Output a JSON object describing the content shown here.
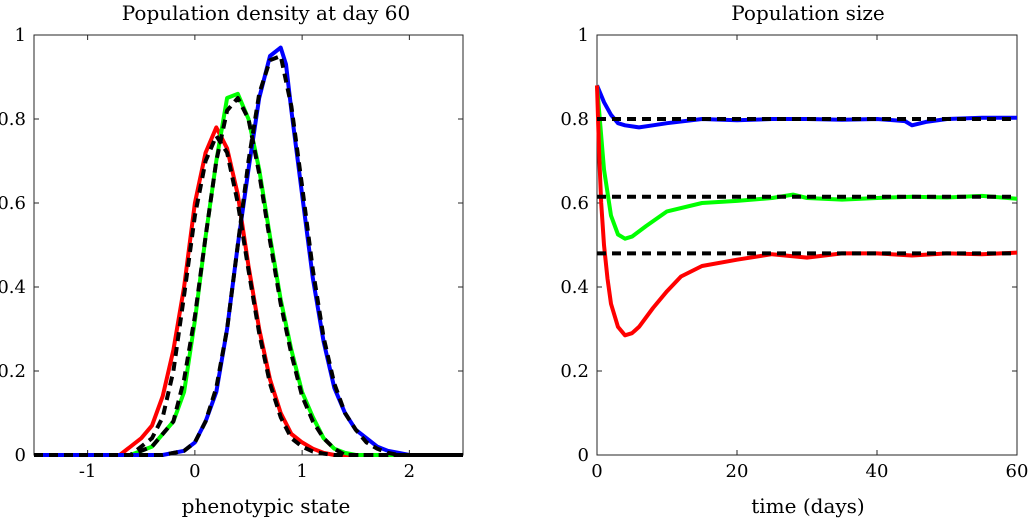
{
  "chart_data": [
    {
      "type": "line",
      "title": "Population density at day 60",
      "xlabel": "phenotypic state",
      "ylabel": "",
      "xlim": [
        -1.5,
        2.5
      ],
      "ylim": [
        0,
        1
      ],
      "xticks": [
        -1,
        0,
        1,
        2
      ],
      "yticks": [
        0,
        0.2,
        0.4,
        0.6,
        0.8,
        1
      ],
      "xtick_labels": [
        "-1",
        "0",
        "1",
        "2"
      ],
      "ytick_labels": [
        "0",
        "0.2",
        "0.4",
        "0.6",
        "0.8",
        "1"
      ],
      "grid": false,
      "series": [
        {
          "color": "#ff0000",
          "style": "solid",
          "x": [
            -1.5,
            -0.7,
            -0.5,
            -0.4,
            -0.3,
            -0.2,
            -0.1,
            0.0,
            0.1,
            0.2,
            0.3,
            0.4,
            0.5,
            0.6,
            0.7,
            0.8,
            0.9,
            1.0,
            1.1,
            1.2,
            1.3,
            1.4,
            2.5
          ],
          "y": [
            0,
            0,
            0.04,
            0.07,
            0.14,
            0.25,
            0.4,
            0.6,
            0.72,
            0.78,
            0.73,
            0.62,
            0.45,
            0.3,
            0.18,
            0.1,
            0.05,
            0.03,
            0.015,
            0.005,
            0,
            0,
            0
          ]
        },
        {
          "color": "#00ff00",
          "style": "solid",
          "x": [
            -1.5,
            -0.6,
            -0.4,
            -0.2,
            -0.1,
            0.0,
            0.1,
            0.2,
            0.3,
            0.4,
            0.5,
            0.6,
            0.7,
            0.8,
            0.9,
            1.0,
            1.1,
            1.2,
            1.3,
            1.4,
            1.5,
            2.5
          ],
          "y": [
            0,
            0,
            0.02,
            0.08,
            0.15,
            0.32,
            0.52,
            0.7,
            0.85,
            0.86,
            0.8,
            0.68,
            0.52,
            0.37,
            0.25,
            0.15,
            0.09,
            0.04,
            0.015,
            0.005,
            0,
            0
          ]
        },
        {
          "color": "#0000ff",
          "style": "solid",
          "x": [
            -1.5,
            -0.3,
            -0.1,
            0.0,
            0.1,
            0.2,
            0.3,
            0.4,
            0.5,
            0.6,
            0.7,
            0.8,
            0.85,
            0.9,
            1.0,
            1.1,
            1.2,
            1.3,
            1.4,
            1.5,
            1.6,
            1.7,
            1.8,
            1.9,
            2.0,
            2.5
          ],
          "y": [
            0,
            0,
            0.01,
            0.03,
            0.08,
            0.15,
            0.3,
            0.5,
            0.68,
            0.85,
            0.95,
            0.97,
            0.93,
            0.82,
            0.62,
            0.42,
            0.27,
            0.16,
            0.1,
            0.06,
            0.04,
            0.02,
            0.01,
            0.005,
            0,
            0
          ]
        },
        {
          "color": "#000000",
          "style": "dashed",
          "x": [
            -1.5,
            -0.6,
            -0.4,
            -0.3,
            -0.2,
            -0.1,
            0.0,
            0.1,
            0.2,
            0.3,
            0.4,
            0.5,
            0.6,
            0.7,
            0.8,
            0.9,
            1.0,
            1.1,
            1.2,
            1.3,
            2.5
          ],
          "y": [
            0,
            0,
            0.04,
            0.09,
            0.2,
            0.38,
            0.57,
            0.7,
            0.76,
            0.72,
            0.6,
            0.44,
            0.29,
            0.17,
            0.09,
            0.04,
            0.02,
            0.008,
            0.003,
            0,
            0
          ]
        },
        {
          "color": "#000000",
          "style": "dashed",
          "x": [
            -1.5,
            -0.6,
            -0.4,
            -0.2,
            -0.1,
            0.0,
            0.1,
            0.2,
            0.3,
            0.4,
            0.5,
            0.6,
            0.7,
            0.8,
            0.9,
            1.0,
            1.1,
            1.2,
            1.3,
            1.4,
            2.5
          ],
          "y": [
            0,
            0,
            0.02,
            0.08,
            0.18,
            0.33,
            0.52,
            0.7,
            0.82,
            0.85,
            0.8,
            0.67,
            0.51,
            0.36,
            0.24,
            0.14,
            0.08,
            0.04,
            0.015,
            0,
            0
          ]
        },
        {
          "color": "#000000",
          "style": "dashed",
          "x": [
            -1.5,
            -0.3,
            -0.1,
            0.0,
            0.1,
            0.2,
            0.3,
            0.4,
            0.5,
            0.6,
            0.7,
            0.8,
            0.9,
            1.0,
            1.1,
            1.2,
            1.3,
            1.4,
            1.5,
            1.6,
            1.7,
            1.8,
            1.9,
            2.5
          ],
          "y": [
            0,
            0,
            0.01,
            0.03,
            0.08,
            0.16,
            0.3,
            0.5,
            0.7,
            0.86,
            0.94,
            0.95,
            0.83,
            0.64,
            0.44,
            0.28,
            0.17,
            0.1,
            0.06,
            0.03,
            0.015,
            0.005,
            0,
            0
          ]
        }
      ]
    },
    {
      "type": "line",
      "title": "Population size",
      "xlabel": "time (days)",
      "ylabel": "",
      "xlim": [
        0,
        60
      ],
      "ylim": [
        0,
        1
      ],
      "xticks": [
        0,
        20,
        40,
        60
      ],
      "yticks": [
        0,
        0.2,
        0.4,
        0.6,
        0.8,
        1
      ],
      "xtick_labels": [
        "0",
        "20",
        "40",
        "60"
      ],
      "ytick_labels": [
        "0",
        "0.2",
        "0.4",
        "0.6",
        "0.8",
        "1"
      ],
      "grid": false,
      "series": [
        {
          "color": "#0000ff",
          "style": "solid",
          "x": [
            0,
            1,
            2,
            3,
            4,
            6,
            8,
            10,
            15,
            20,
            25,
            30,
            35,
            40,
            44,
            45,
            47,
            50,
            55,
            60
          ],
          "y": [
            0.88,
            0.84,
            0.81,
            0.79,
            0.785,
            0.78,
            0.785,
            0.79,
            0.8,
            0.797,
            0.8,
            0.8,
            0.798,
            0.8,
            0.795,
            0.785,
            0.793,
            0.8,
            0.803,
            0.803
          ]
        },
        {
          "color": "#00ff00",
          "style": "solid",
          "x": [
            0,
            0.5,
            1,
            2,
            3,
            4,
            5,
            7,
            10,
            15,
            20,
            25,
            28,
            30,
            35,
            40,
            45,
            50,
            55,
            60
          ],
          "y": [
            0.88,
            0.78,
            0.68,
            0.57,
            0.525,
            0.515,
            0.52,
            0.545,
            0.58,
            0.6,
            0.605,
            0.612,
            0.62,
            0.612,
            0.608,
            0.612,
            0.615,
            0.613,
            0.617,
            0.61
          ]
        },
        {
          "color": "#ff0000",
          "style": "solid",
          "x": [
            0,
            0.3,
            0.6,
            1,
            1.5,
            2,
            3,
            4,
            5,
            6,
            8,
            10,
            12,
            15,
            20,
            25,
            30,
            35,
            40,
            45,
            50,
            55,
            60
          ],
          "y": [
            0.88,
            0.72,
            0.6,
            0.5,
            0.42,
            0.36,
            0.305,
            0.285,
            0.29,
            0.305,
            0.35,
            0.39,
            0.425,
            0.45,
            0.465,
            0.478,
            0.47,
            0.48,
            0.48,
            0.475,
            0.48,
            0.478,
            0.482
          ]
        },
        {
          "color": "#000000",
          "style": "dashed",
          "x": [
            0,
            60
          ],
          "y": [
            0.8,
            0.8
          ]
        },
        {
          "color": "#000000",
          "style": "dashed",
          "x": [
            0,
            60
          ],
          "y": [
            0.615,
            0.615
          ]
        },
        {
          "color": "#000000",
          "style": "dashed",
          "x": [
            0,
            60
          ],
          "y": [
            0.48,
            0.48
          ]
        }
      ]
    }
  ]
}
